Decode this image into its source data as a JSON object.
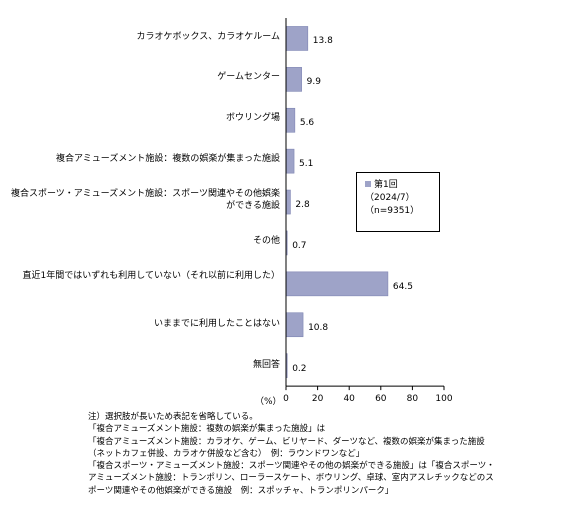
{
  "chart_data": {
    "type": "bar",
    "orientation": "horizontal",
    "categories": [
      "カラオケボックス、カラオケルーム",
      "ゲームセンター",
      "ボウリング場",
      "複合アミューズメント施設：複数の娯楽が集まった施設",
      "複合スポーツ・アミューズメント施設：スポーツ関連やその他娯楽ができる施設",
      "その他",
      "直近1年間ではいずれも利用していない（それ以前に利用した）",
      "いままでに利用したことはない",
      "無回答"
    ],
    "values": [
      13.8,
      9.9,
      5.6,
      5.1,
      2.8,
      0.7,
      64.5,
      10.8,
      0.2
    ],
    "value_labels": [
      "13.8",
      "9.9",
      "5.6",
      "5.1",
      "2.8",
      "0.7",
      "64.5",
      "10.8",
      "0.2"
    ],
    "series": [
      {
        "name": "第1回 (2024/7) (n=9351)",
        "values": [
          13.8,
          9.9,
          5.6,
          5.1,
          2.8,
          0.7,
          64.5,
          10.8,
          0.2
        ]
      }
    ],
    "xlim": [
      0,
      100
    ],
    "xticks": [
      "0",
      "20",
      "40",
      "60",
      "80",
      "100"
    ],
    "xlabel": "（%）",
    "grid": false,
    "legend_position": "right",
    "colors": {
      "bar": "#9ea3c8",
      "bar_edge": "#7f85b3",
      "axis": "#000000"
    }
  },
  "legend": {
    "line1": "第1回",
    "line2": "（2024/7）",
    "line3": "（n=9351）"
  },
  "notes": [
    "注）選択肢が長いため表記を省略している。",
    "「複合アミューズメント施設：複数の娯楽が集まった施設」は",
    "「複合アミューズメント施設：カラオケ、ゲーム、ビリヤード、ダーツなど、複数の娯楽が集まった施設",
    "（ネットカフェ併設、カラオケ併設など含む）　例：ラウンドワンなど」",
    "「複合スポーツ・アミューズメント施設：スポーツ関連やその他の娯楽ができる施設」は「複合スポーツ・",
    "アミューズメント施設：トランポリン、ローラースケート、ボウリング、卓球、室内アスレチックなどのス",
    "ポーツ関連やその他娯楽ができる施設　例：スポッチャ、トランポリンパーク」"
  ]
}
